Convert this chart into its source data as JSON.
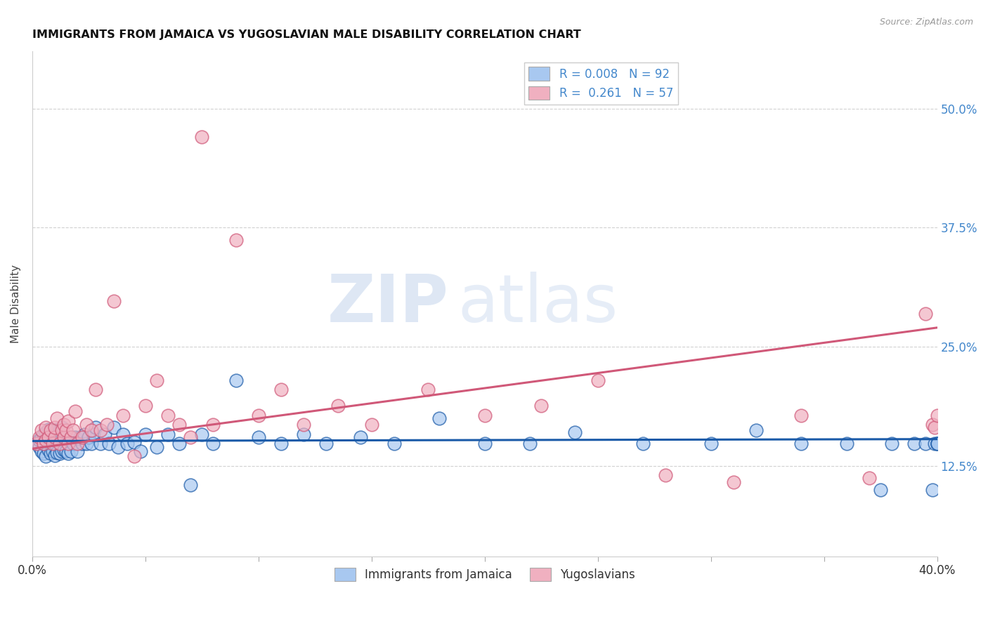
{
  "title": "IMMIGRANTS FROM JAMAICA VS YUGOSLAVIAN MALE DISABILITY CORRELATION CHART",
  "source": "Source: ZipAtlas.com",
  "ylabel": "Male Disability",
  "ytick_labels": [
    "12.5%",
    "25.0%",
    "37.5%",
    "50.0%"
  ],
  "ytick_values": [
    0.125,
    0.25,
    0.375,
    0.5
  ],
  "xlim": [
    0.0,
    0.4
  ],
  "ylim": [
    0.03,
    0.56
  ],
  "watermark_zip": "ZIP",
  "watermark_atlas": "atlas",
  "legend_line1": "R = 0.008   N = 92",
  "legend_line2": "R =  0.261   N = 57",
  "color_jamaica": "#a8c8f0",
  "color_yugoslavian": "#f0b0c0",
  "color_jamaica_fill": "#a8c8f0",
  "color_yugoslavian_fill": "#f0b0c0",
  "color_jamaica_line": "#1a5aa8",
  "color_yugoslavian_line": "#d05878",
  "color_r_n": "#4488cc",
  "jamaica_points_x": [
    0.002,
    0.003,
    0.003,
    0.004,
    0.004,
    0.005,
    0.005,
    0.005,
    0.006,
    0.006,
    0.006,
    0.007,
    0.007,
    0.007,
    0.008,
    0.008,
    0.008,
    0.009,
    0.009,
    0.009,
    0.01,
    0.01,
    0.01,
    0.011,
    0.011,
    0.011,
    0.012,
    0.012,
    0.012,
    0.013,
    0.013,
    0.013,
    0.014,
    0.014,
    0.015,
    0.015,
    0.016,
    0.016,
    0.017,
    0.017,
    0.018,
    0.019,
    0.02,
    0.021,
    0.022,
    0.023,
    0.024,
    0.025,
    0.026,
    0.027,
    0.028,
    0.03,
    0.032,
    0.034,
    0.036,
    0.038,
    0.04,
    0.042,
    0.045,
    0.048,
    0.05,
    0.055,
    0.06,
    0.065,
    0.07,
    0.075,
    0.08,
    0.09,
    0.1,
    0.11,
    0.12,
    0.13,
    0.145,
    0.16,
    0.18,
    0.2,
    0.22,
    0.24,
    0.27,
    0.3,
    0.32,
    0.34,
    0.36,
    0.375,
    0.38,
    0.39,
    0.395,
    0.398,
    0.399,
    0.4,
    0.4,
    0.4
  ],
  "jamaica_points_y": [
    0.148,
    0.145,
    0.152,
    0.14,
    0.155,
    0.138,
    0.148,
    0.158,
    0.135,
    0.15,
    0.16,
    0.142,
    0.153,
    0.163,
    0.138,
    0.148,
    0.158,
    0.14,
    0.152,
    0.162,
    0.136,
    0.148,
    0.16,
    0.139,
    0.151,
    0.163,
    0.138,
    0.15,
    0.162,
    0.14,
    0.152,
    0.165,
    0.142,
    0.154,
    0.14,
    0.155,
    0.138,
    0.153,
    0.14,
    0.155,
    0.148,
    0.155,
    0.14,
    0.155,
    0.148,
    0.158,
    0.148,
    0.155,
    0.148,
    0.158,
    0.165,
    0.148,
    0.158,
    0.148,
    0.165,
    0.145,
    0.158,
    0.148,
    0.15,
    0.14,
    0.158,
    0.145,
    0.158,
    0.148,
    0.105,
    0.158,
    0.148,
    0.215,
    0.155,
    0.148,
    0.158,
    0.148,
    0.155,
    0.148,
    0.175,
    0.148,
    0.148,
    0.16,
    0.148,
    0.148,
    0.162,
    0.148,
    0.148,
    0.1,
    0.148,
    0.148,
    0.148,
    0.1,
    0.148,
    0.148,
    0.148,
    0.148
  ],
  "yugoslavian_points_x": [
    0.002,
    0.003,
    0.004,
    0.005,
    0.006,
    0.006,
    0.007,
    0.008,
    0.009,
    0.01,
    0.01,
    0.011,
    0.012,
    0.013,
    0.014,
    0.014,
    0.015,
    0.016,
    0.016,
    0.017,
    0.018,
    0.019,
    0.02,
    0.022,
    0.024,
    0.026,
    0.028,
    0.03,
    0.033,
    0.036,
    0.04,
    0.045,
    0.05,
    0.055,
    0.06,
    0.065,
    0.07,
    0.075,
    0.08,
    0.09,
    0.1,
    0.11,
    0.12,
    0.135,
    0.15,
    0.175,
    0.2,
    0.225,
    0.25,
    0.28,
    0.31,
    0.34,
    0.37,
    0.395,
    0.398,
    0.399,
    0.4
  ],
  "yugoslavian_points_y": [
    0.148,
    0.155,
    0.162,
    0.148,
    0.152,
    0.165,
    0.155,
    0.162,
    0.148,
    0.155,
    0.165,
    0.175,
    0.148,
    0.162,
    0.155,
    0.168,
    0.162,
    0.148,
    0.172,
    0.155,
    0.162,
    0.182,
    0.148,
    0.155,
    0.168,
    0.162,
    0.205,
    0.162,
    0.168,
    0.298,
    0.178,
    0.135,
    0.188,
    0.215,
    0.178,
    0.168,
    0.155,
    0.47,
    0.168,
    0.362,
    0.178,
    0.205,
    0.168,
    0.188,
    0.168,
    0.205,
    0.178,
    0.188,
    0.215,
    0.115,
    0.108,
    0.178,
    0.112,
    0.285,
    0.168,
    0.165,
    0.178
  ],
  "jamaica_line_x": [
    0.0,
    0.4
  ],
  "jamaica_line_y": [
    0.151,
    0.153
  ],
  "yugoslavian_line_x": [
    0.0,
    0.4
  ],
  "yugoslavian_line_y": [
    0.143,
    0.27
  ]
}
